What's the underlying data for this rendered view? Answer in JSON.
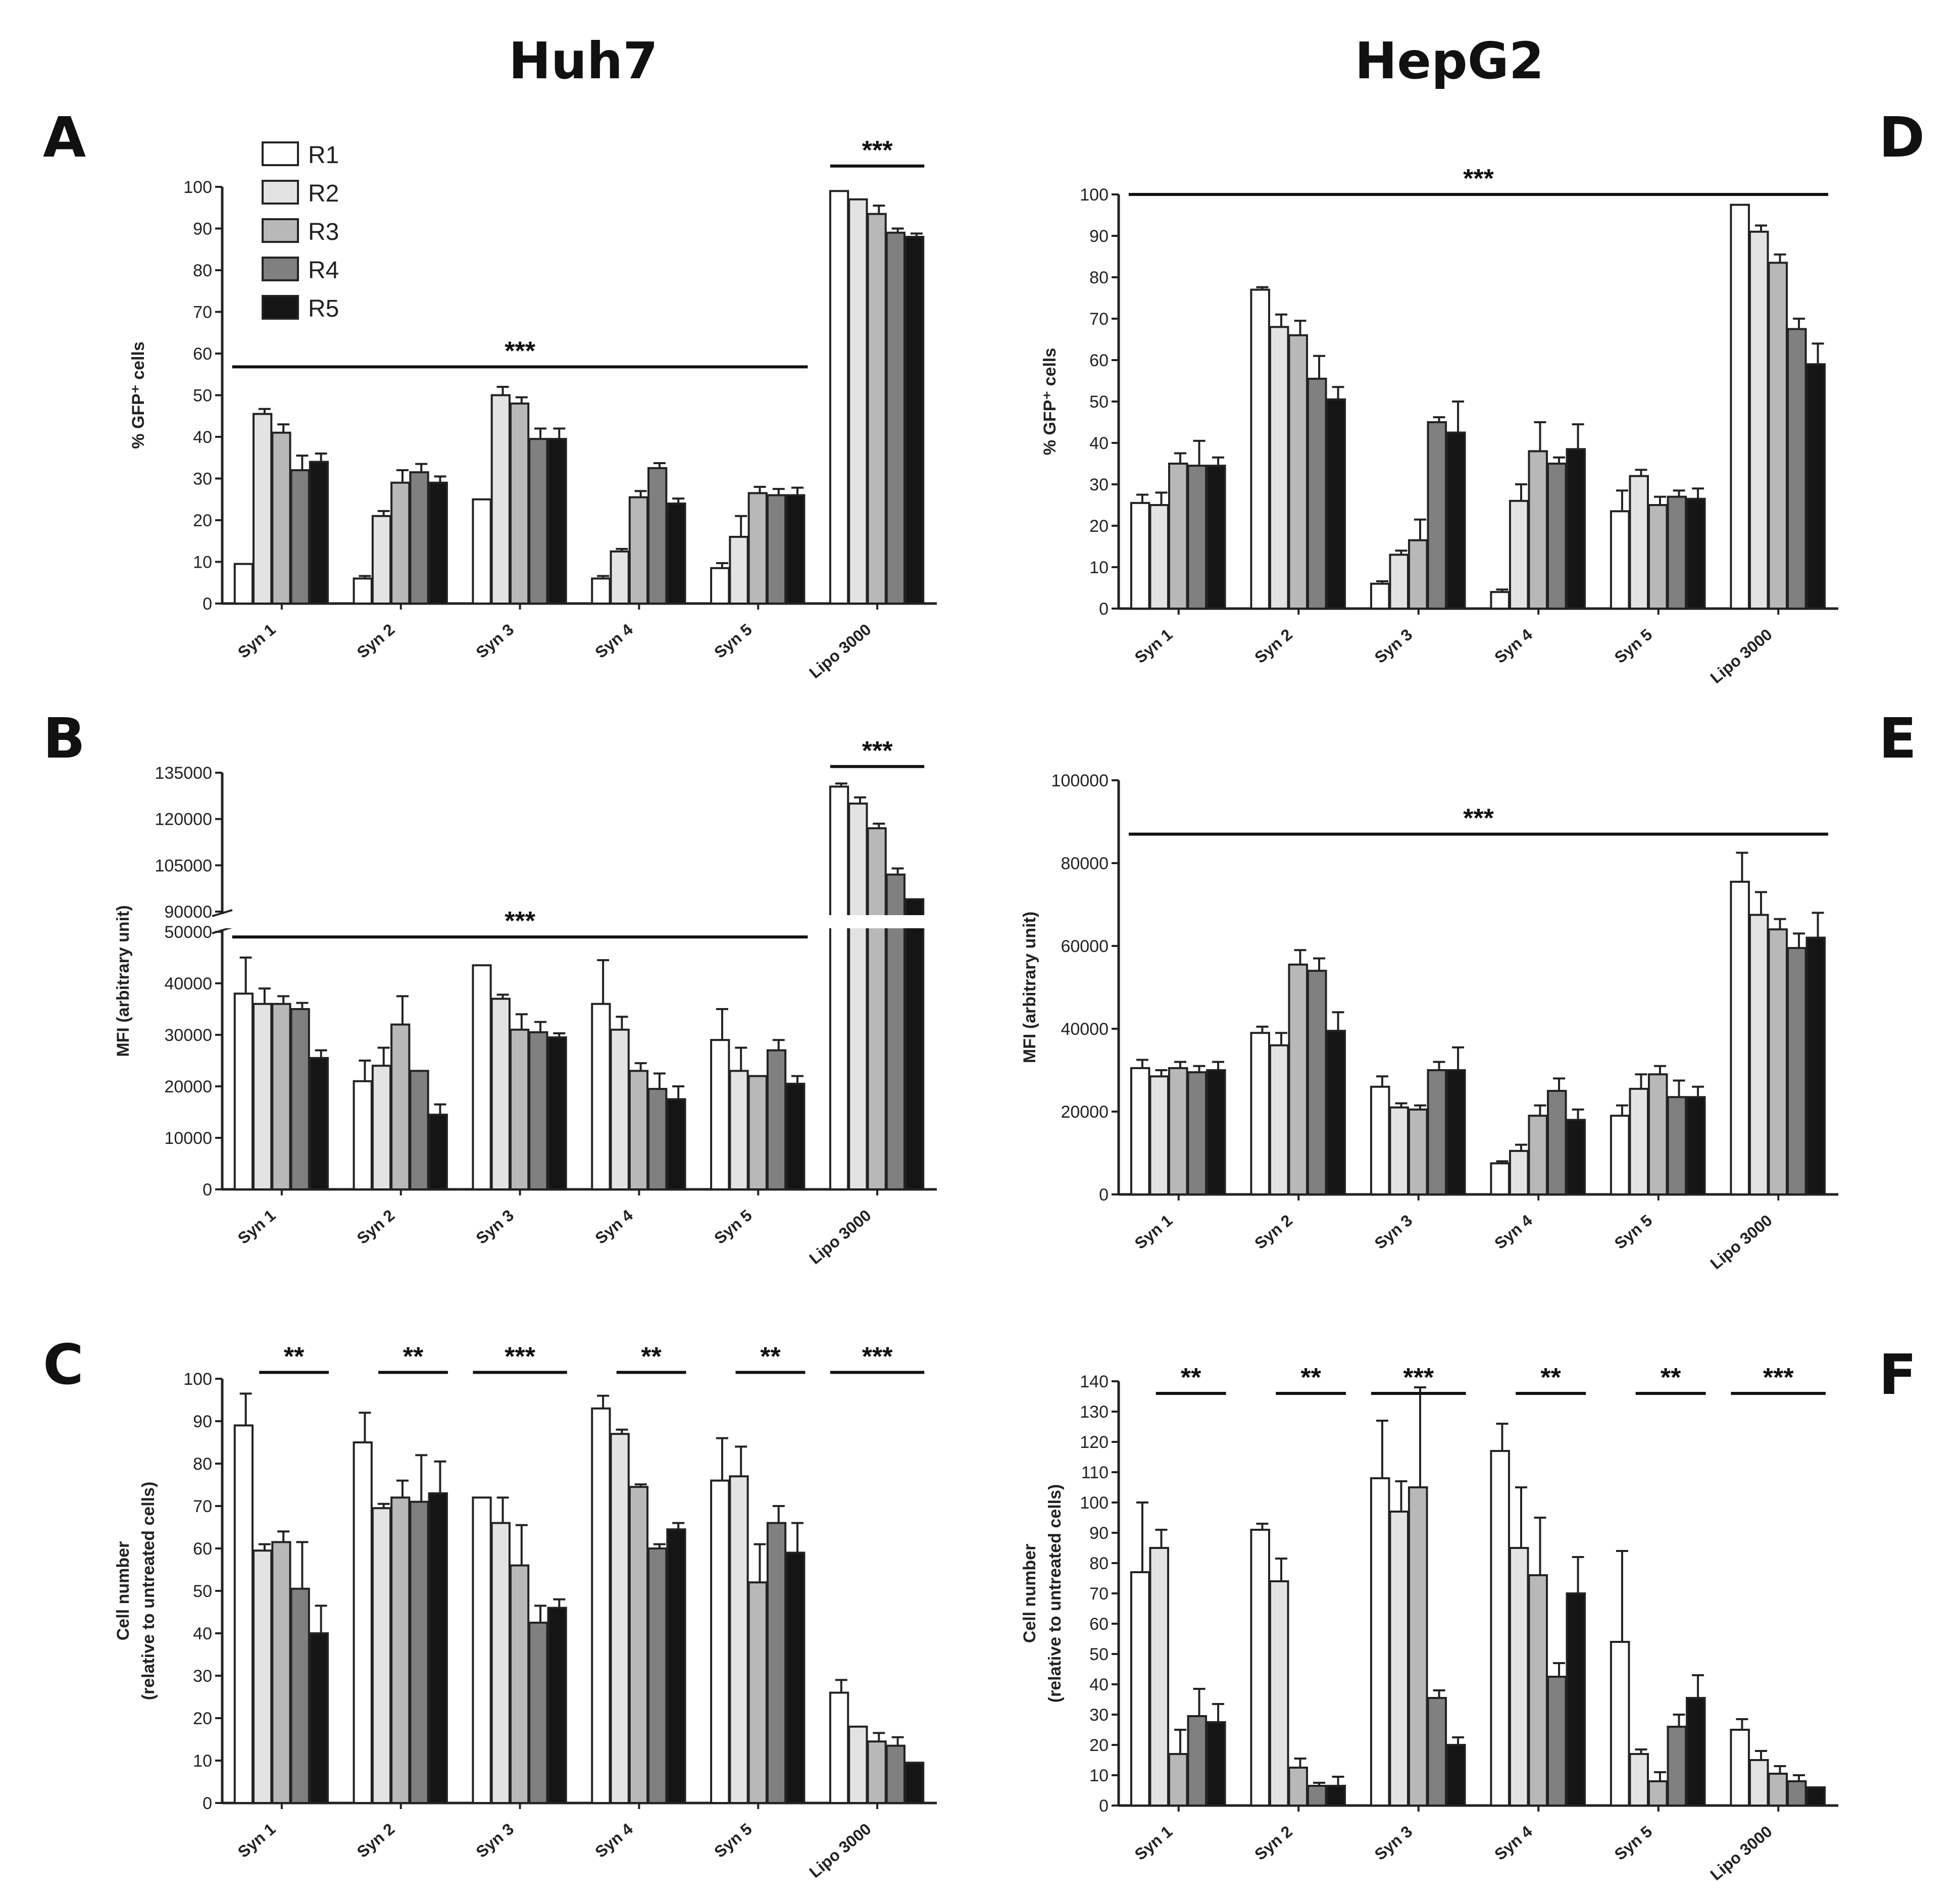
{
  "columns": [
    "Huh7",
    "HepG2"
  ],
  "legend": [
    {
      "label": "R1",
      "color": "#ffffff"
    },
    {
      "label": "R2",
      "color": "#e3e3e3"
    },
    {
      "label": "R3",
      "color": "#b8b8b8"
    },
    {
      "label": "R4",
      "color": "#808080"
    },
    {
      "label": "R5",
      "color": "#151515"
    }
  ],
  "chart_data": [
    {
      "panel": "A",
      "cell_line": "Huh7",
      "type": "bar",
      "ylabel": [
        "% GFP⁺ cells"
      ],
      "yticks": [
        0,
        10,
        20,
        30,
        40,
        50,
        60,
        70,
        80,
        90,
        100
      ],
      "categories": [
        "Syn 1",
        "Syn 2",
        "Syn 3",
        "Syn 4",
        "Syn 5",
        "Lipo 3000"
      ],
      "series": [
        {
          "name": "R1",
          "values": [
            9.5,
            6,
            25,
            6,
            8.5,
            99
          ],
          "errors": [
            0,
            0.6,
            0,
            0.6,
            1.2,
            0
          ]
        },
        {
          "name": "R2",
          "values": [
            45.5,
            21,
            50,
            12.5,
            16,
            97
          ],
          "errors": [
            1.2,
            1.2,
            2,
            0.6,
            5,
            0
          ]
        },
        {
          "name": "R3",
          "values": [
            41,
            29,
            48,
            25.5,
            26.5,
            93.5
          ],
          "errors": [
            2,
            3,
            1.5,
            1.5,
            1.5,
            2
          ]
        },
        {
          "name": "R4",
          "values": [
            32,
            31.5,
            39.5,
            32.5,
            26,
            89
          ],
          "errors": [
            3.5,
            2,
            2.5,
            1.2,
            1.5,
            1
          ]
        },
        {
          "name": "R5",
          "values": [
            34,
            29,
            39.5,
            24,
            26,
            88
          ],
          "errors": [
            2,
            1.5,
            2.5,
            1.2,
            1.8,
            0.8
          ]
        }
      ],
      "significance": [
        {
          "label": "***",
          "from": "Syn 1",
          "to": "Syn 5",
          "y": 56.8
        },
        {
          "label": "***",
          "from": "Lipo 3000",
          "to": "Lipo 3000",
          "y": 105
        }
      ]
    },
    {
      "panel": "B",
      "cell_line": "Huh7",
      "type": "bar",
      "broken_axis": true,
      "ylabel": [
        "MFI (arbitrary unit)"
      ],
      "yticks": [
        0,
        10000,
        20000,
        30000,
        40000,
        50000,
        90000,
        105000,
        120000,
        135000
      ],
      "categories": [
        "Syn 1",
        "Syn 2",
        "Syn 3",
        "Syn 4",
        "Syn 5",
        "Lipo 3000"
      ],
      "series": [
        {
          "name": "R1",
          "values": [
            38000,
            21000,
            43500,
            36000,
            29000,
            130500
          ],
          "errors": [
            7000,
            4000,
            0,
            8500,
            6000,
            1000
          ]
        },
        {
          "name": "R2",
          "values": [
            36000,
            24000,
            37000,
            31000,
            23000,
            125000
          ],
          "errors": [
            3000,
            3500,
            800,
            2500,
            4500,
            2000
          ]
        },
        {
          "name": "R3",
          "values": [
            36000,
            32000,
            31000,
            23000,
            22000,
            117000
          ],
          "errors": [
            1500,
            5500,
            3000,
            1500,
            0,
            1500
          ]
        },
        {
          "name": "R4",
          "values": [
            35000,
            23000,
            30500,
            19500,
            27000,
            102000
          ],
          "errors": [
            1200,
            0,
            2000,
            3000,
            2000,
            2000
          ]
        },
        {
          "name": "R5",
          "values": [
            25500,
            14500,
            29500,
            17500,
            20500,
            94000
          ],
          "errors": [
            1500,
            2000,
            800,
            2500,
            1500,
            0
          ]
        }
      ],
      "significance": [
        {
          "label": "***",
          "from": "Syn 1",
          "to": "Syn 5",
          "y": 49000
        },
        {
          "label": "***",
          "from": "Lipo 3000",
          "to": "Lipo 3000",
          "y": 137000
        }
      ]
    },
    {
      "panel": "C",
      "cell_line": "Huh7",
      "type": "bar",
      "ylabel": [
        "Cell number",
        "(relative to untreated cells)"
      ],
      "yticks": [
        0,
        10,
        20,
        30,
        40,
        50,
        60,
        70,
        80,
        90,
        100
      ],
      "categories": [
        "Syn 1",
        "Syn 2",
        "Syn 3",
        "Syn 4",
        "Syn 5",
        "Lipo 3000"
      ],
      "series": [
        {
          "name": "R1",
          "values": [
            89,
            85,
            72,
            93,
            76,
            26
          ],
          "errors": [
            7.5,
            7,
            0,
            3,
            10,
            3
          ]
        },
        {
          "name": "R2",
          "values": [
            59.5,
            69.5,
            66,
            87,
            77,
            18
          ],
          "errors": [
            1.5,
            1,
            6,
            1,
            7,
            0
          ]
        },
        {
          "name": "R3",
          "values": [
            61.5,
            72,
            56,
            74.5,
            52,
            14.5
          ],
          "errors": [
            2.5,
            4,
            9.5,
            0.6,
            9,
            2
          ]
        },
        {
          "name": "R4",
          "values": [
            50.5,
            71,
            42.5,
            60,
            66,
            13.5
          ],
          "errors": [
            11,
            11,
            4,
            1,
            4,
            2
          ]
        },
        {
          "name": "R5",
          "values": [
            40,
            73,
            46,
            64.5,
            59,
            9.5
          ],
          "errors": [
            6.5,
            7.5,
            2,
            1.5,
            7,
            0
          ]
        }
      ],
      "significance": [
        {
          "label": "**",
          "from": "Syn 1",
          "to": "Syn 1",
          "y": 101.5
        },
        {
          "label": "**",
          "from": "Syn 2",
          "to": "Syn 2",
          "y": 101.5
        },
        {
          "label": "***",
          "from": "Syn 3",
          "to": "Syn 3",
          "y": 101.5
        },
        {
          "label": "**",
          "from": "Syn 4",
          "to": "Syn 4",
          "y": 101.5
        },
        {
          "label": "**",
          "from": "Syn 5",
          "to": "Syn 5",
          "y": 101.5
        },
        {
          "label": "***",
          "from": "Lipo 3000",
          "to": "Lipo 3000",
          "y": 101.5
        }
      ]
    },
    {
      "panel": "D",
      "cell_line": "HepG2",
      "type": "bar",
      "ylabel": [
        "% GFP⁺ cells"
      ],
      "yticks": [
        0,
        10,
        20,
        30,
        40,
        50,
        60,
        70,
        80,
        90,
        100
      ],
      "categories": [
        "Syn 1",
        "Syn 2",
        "Syn 3",
        "Syn 4",
        "Syn 5",
        "Lipo 3000"
      ],
      "series": [
        {
          "name": "R1",
          "values": [
            25.5,
            77,
            6,
            4,
            23.5,
            97.5
          ],
          "errors": [
            2,
            0.6,
            0.6,
            0.6,
            5,
            0
          ]
        },
        {
          "name": "R2",
          "values": [
            25,
            68,
            13,
            26,
            32,
            91
          ],
          "errors": [
            3,
            3,
            1,
            4,
            1.5,
            1.5
          ]
        },
        {
          "name": "R3",
          "values": [
            35,
            66,
            16.5,
            38,
            25,
            83.5
          ],
          "errors": [
            2.5,
            3.5,
            5,
            7,
            2,
            2
          ]
        },
        {
          "name": "R4",
          "values": [
            34.5,
            55.5,
            45,
            35,
            27,
            67.5
          ],
          "errors": [
            6,
            5.5,
            1.2,
            1.5,
            1.5,
            2.5
          ]
        },
        {
          "name": "R5",
          "values": [
            34.5,
            50.5,
            42.5,
            38.5,
            26.5,
            59
          ],
          "errors": [
            2,
            3,
            7.5,
            6,
            2.5,
            5
          ]
        }
      ],
      "significance": [
        {
          "label": "***",
          "from": "Syn 1",
          "to": "Lipo 3000",
          "y": 100
        }
      ]
    },
    {
      "panel": "E",
      "cell_line": "HepG2",
      "type": "bar",
      "ylabel": [
        "MFI (arbitrary unit)"
      ],
      "yticks": [
        0,
        20000,
        40000,
        60000,
        80000,
        100000
      ],
      "categories": [
        "Syn 1",
        "Syn 2",
        "Syn 3",
        "Syn 4",
        "Syn 5",
        "Lipo 3000"
      ],
      "series": [
        {
          "name": "R1",
          "values": [
            30500,
            39000,
            26000,
            7500,
            19000,
            75500
          ],
          "errors": [
            2000,
            1500,
            2500,
            500,
            2500,
            7000
          ]
        },
        {
          "name": "R2",
          "values": [
            28500,
            36000,
            21000,
            10500,
            25500,
            67500
          ],
          "errors": [
            1500,
            3000,
            1000,
            1500,
            3500,
            5500
          ]
        },
        {
          "name": "R3",
          "values": [
            30500,
            55500,
            20500,
            19000,
            29000,
            64000
          ],
          "errors": [
            1500,
            3500,
            1000,
            2500,
            2000,
            2500
          ]
        },
        {
          "name": "R4",
          "values": [
            29500,
            54000,
            30000,
            25000,
            23500,
            59500
          ],
          "errors": [
            1500,
            3000,
            2000,
            3000,
            4000,
            3500
          ]
        },
        {
          "name": "R5",
          "values": [
            30000,
            39500,
            30000,
            18000,
            23500,
            62000
          ],
          "errors": [
            2000,
            4500,
            5500,
            2500,
            2500,
            6000
          ]
        }
      ],
      "significance": [
        {
          "label": "***",
          "from": "Syn 1",
          "to": "Lipo 3000",
          "y": 87000
        }
      ]
    },
    {
      "panel": "F",
      "cell_line": "HepG2",
      "type": "bar",
      "ylabel": [
        "Cell number",
        "(relative to untreated cells)"
      ],
      "yticks": [
        0,
        10,
        20,
        30,
        40,
        50,
        60,
        70,
        80,
        90,
        100,
        110,
        120,
        130,
        140
      ],
      "categories": [
        "Syn 1",
        "Syn 2",
        "Syn 3",
        "Syn 4",
        "Syn 5",
        "Lipo 3000"
      ],
      "series": [
        {
          "name": "R1",
          "values": [
            77,
            91,
            108,
            117,
            54,
            25
          ],
          "errors": [
            23,
            2,
            19,
            9,
            30,
            3.5
          ]
        },
        {
          "name": "R2",
          "values": [
            85,
            74,
            97,
            85,
            17,
            15
          ],
          "errors": [
            6,
            7.5,
            10,
            20,
            1.5,
            3
          ]
        },
        {
          "name": "R3",
          "values": [
            17,
            12.5,
            105,
            76,
            8,
            10.5
          ],
          "errors": [
            8,
            3,
            33,
            19,
            3,
            2.5
          ]
        },
        {
          "name": "R4",
          "values": [
            29.5,
            6.5,
            35.5,
            42.5,
            26,
            8
          ],
          "errors": [
            9,
            1,
            2.5,
            4.5,
            4,
            2
          ]
        },
        {
          "name": "R5",
          "values": [
            27.5,
            6.5,
            20,
            70,
            35.5,
            6
          ],
          "errors": [
            6,
            3,
            2.5,
            12,
            7.5,
            0
          ]
        }
      ],
      "significance": [
        {
          "label": "**",
          "from": "Syn 1",
          "to": "Syn 1",
          "y": 136
        },
        {
          "label": "**",
          "from": "Syn 2",
          "to": "Syn 2",
          "y": 136
        },
        {
          "label": "***",
          "from": "Syn 3",
          "to": "Syn 3",
          "y": 136
        },
        {
          "label": "**",
          "from": "Syn 4",
          "to": "Syn 4",
          "y": 136
        },
        {
          "label": "**",
          "from": "Syn 5",
          "to": "Syn 5",
          "y": 136
        },
        {
          "label": "***",
          "from": "Lipo 3000",
          "to": "Lipo 3000",
          "y": 136
        }
      ]
    }
  ]
}
